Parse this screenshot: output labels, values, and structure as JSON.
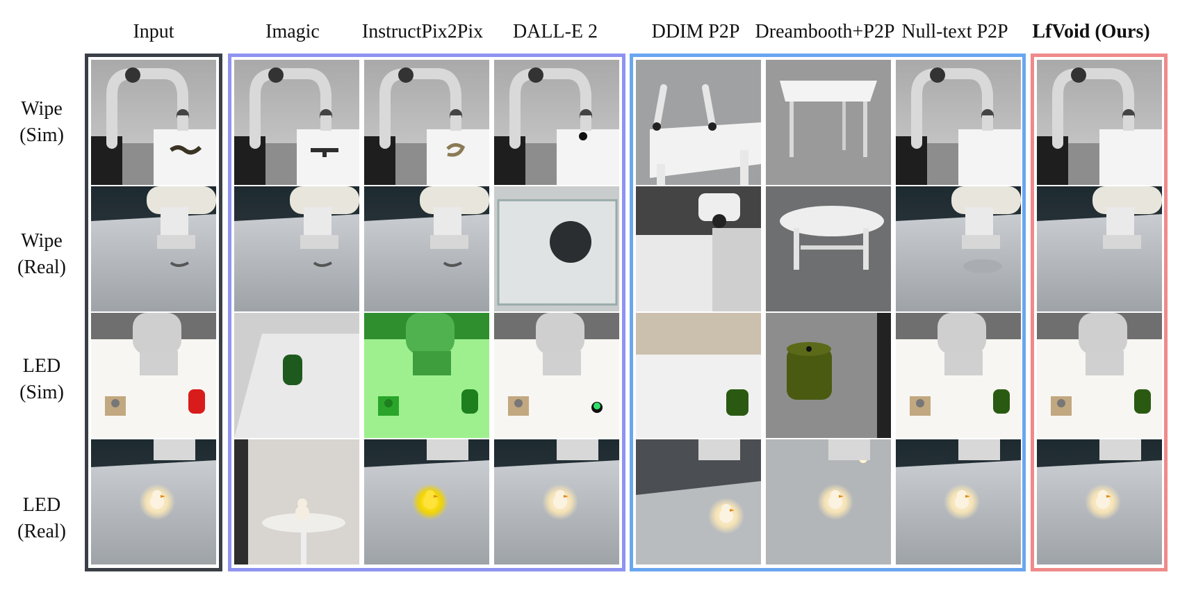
{
  "columns": [
    {
      "label": "Input",
      "bold": false
    },
    {
      "label": "Imagic",
      "bold": false
    },
    {
      "label": "InstructPix2Pix",
      "bold": false
    },
    {
      "label": "DALL-E 2",
      "bold": false
    },
    {
      "label": "DDIM P2P",
      "bold": false
    },
    {
      "label": "Dreambooth+P2P",
      "bold": false
    },
    {
      "label": "Null-text P2P",
      "bold": false
    },
    {
      "label": "LfVoid (Ours)",
      "bold": true
    }
  ],
  "rows": [
    {
      "line1": "Wipe",
      "line2": "(Sim)"
    },
    {
      "line1": "Wipe",
      "line2": "(Real)"
    },
    {
      "line1": "LED",
      "line2": "(Sim)"
    },
    {
      "line1": "LED",
      "line2": "(Real)"
    }
  ],
  "groups": [
    {
      "name": "input-group",
      "color": "#3a3f47"
    },
    {
      "name": "baseline-group-1",
      "color": "#8f93f0"
    },
    {
      "name": "baseline-group-2",
      "color": "#6aa6f0"
    },
    {
      "name": "ours-group",
      "color": "#f08a8a"
    }
  ]
}
